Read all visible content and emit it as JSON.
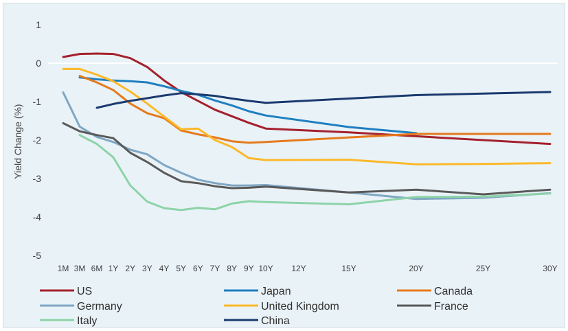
{
  "chart_data": {
    "type": "line",
    "ylabel": "Yield Change (%)",
    "ylim": [
      -5,
      1
    ],
    "yticks": [
      1,
      0,
      -1,
      -2,
      -3,
      -4,
      -5
    ],
    "yticks_labels": [
      "1",
      "0",
      "-1",
      "-2",
      "-3",
      "-4",
      "-5"
    ],
    "grid": "zero line only",
    "legend_placement": "bottom",
    "x": [
      "1M",
      "3M",
      "6M",
      "1Y",
      "2Y",
      "3Y",
      "4Y",
      "5Y",
      "6Y",
      "7Y",
      "8Y",
      "9Y",
      "10Y",
      "12Y",
      "15Y",
      "20Y",
      "25Y",
      "30Y"
    ],
    "series": [
      {
        "name": "US",
        "color": "#a4202c",
        "values": [
          0.16,
          0.24,
          0.25,
          0.24,
          0.13,
          -0.1,
          -0.45,
          -0.75,
          -0.98,
          -1.21,
          -1.38,
          -1.55,
          -1.7,
          null,
          -1.8,
          -1.9,
          -2.0,
          -2.1
        ]
      },
      {
        "name": "Japan",
        "color": "#1f7fc0",
        "values": [
          null,
          -0.37,
          -0.42,
          -0.45,
          -0.47,
          -0.5,
          -0.6,
          -0.72,
          -0.82,
          -0.97,
          -1.1,
          -1.25,
          -1.36,
          null,
          -1.66,
          -1.82,
          null,
          null
        ]
      },
      {
        "name": "Canada",
        "color": "#e57a1c",
        "values": [
          null,
          -0.33,
          -0.5,
          -0.7,
          -1.05,
          -1.3,
          -1.43,
          -1.75,
          -1.85,
          -1.93,
          -2.03,
          -2.07,
          -2.05,
          null,
          -1.93,
          -1.84,
          -1.84,
          -1.84
        ]
      },
      {
        "name": "Germany",
        "color": "#7fa6c4",
        "values": [
          -0.76,
          -1.65,
          -1.92,
          -2.05,
          -2.25,
          -2.37,
          -2.65,
          -2.85,
          -3.03,
          -3.12,
          -3.18,
          -3.18,
          -3.17,
          null,
          -3.36,
          -3.53,
          -3.5,
          -3.38
        ]
      },
      {
        "name": "United Kingdom",
        "color": "#fcb82a",
        "values": [
          -0.15,
          -0.15,
          -0.3,
          -0.47,
          -0.74,
          -1.05,
          -1.39,
          -1.72,
          -1.7,
          -2.0,
          -2.18,
          -2.47,
          -2.52,
          null,
          -2.51,
          -2.63,
          -2.62,
          -2.6
        ]
      },
      {
        "name": "France",
        "color": "#595959",
        "values": [
          -1.56,
          -1.77,
          -1.87,
          -1.95,
          -2.33,
          -2.57,
          -2.85,
          -3.07,
          -3.12,
          -3.2,
          -3.25,
          -3.24,
          -3.21,
          null,
          -3.36,
          -3.29,
          -3.41,
          -3.29
        ]
      },
      {
        "name": "Italy",
        "color": "#8dd3a8",
        "values": [
          null,
          -1.87,
          -2.1,
          -2.45,
          -3.18,
          -3.6,
          -3.77,
          -3.82,
          -3.76,
          -3.8,
          -3.65,
          -3.59,
          -3.61,
          null,
          -3.67,
          -3.48,
          -3.47,
          -3.39
        ]
      },
      {
        "name": "China",
        "color": "#1a3a6e",
        "values": [
          null,
          null,
          -1.16,
          -1.06,
          -0.98,
          -0.91,
          -0.84,
          -0.78,
          -0.81,
          -0.85,
          -0.92,
          -0.98,
          -1.03,
          null,
          -0.92,
          -0.83,
          -0.79,
          -0.75
        ]
      }
    ]
  }
}
